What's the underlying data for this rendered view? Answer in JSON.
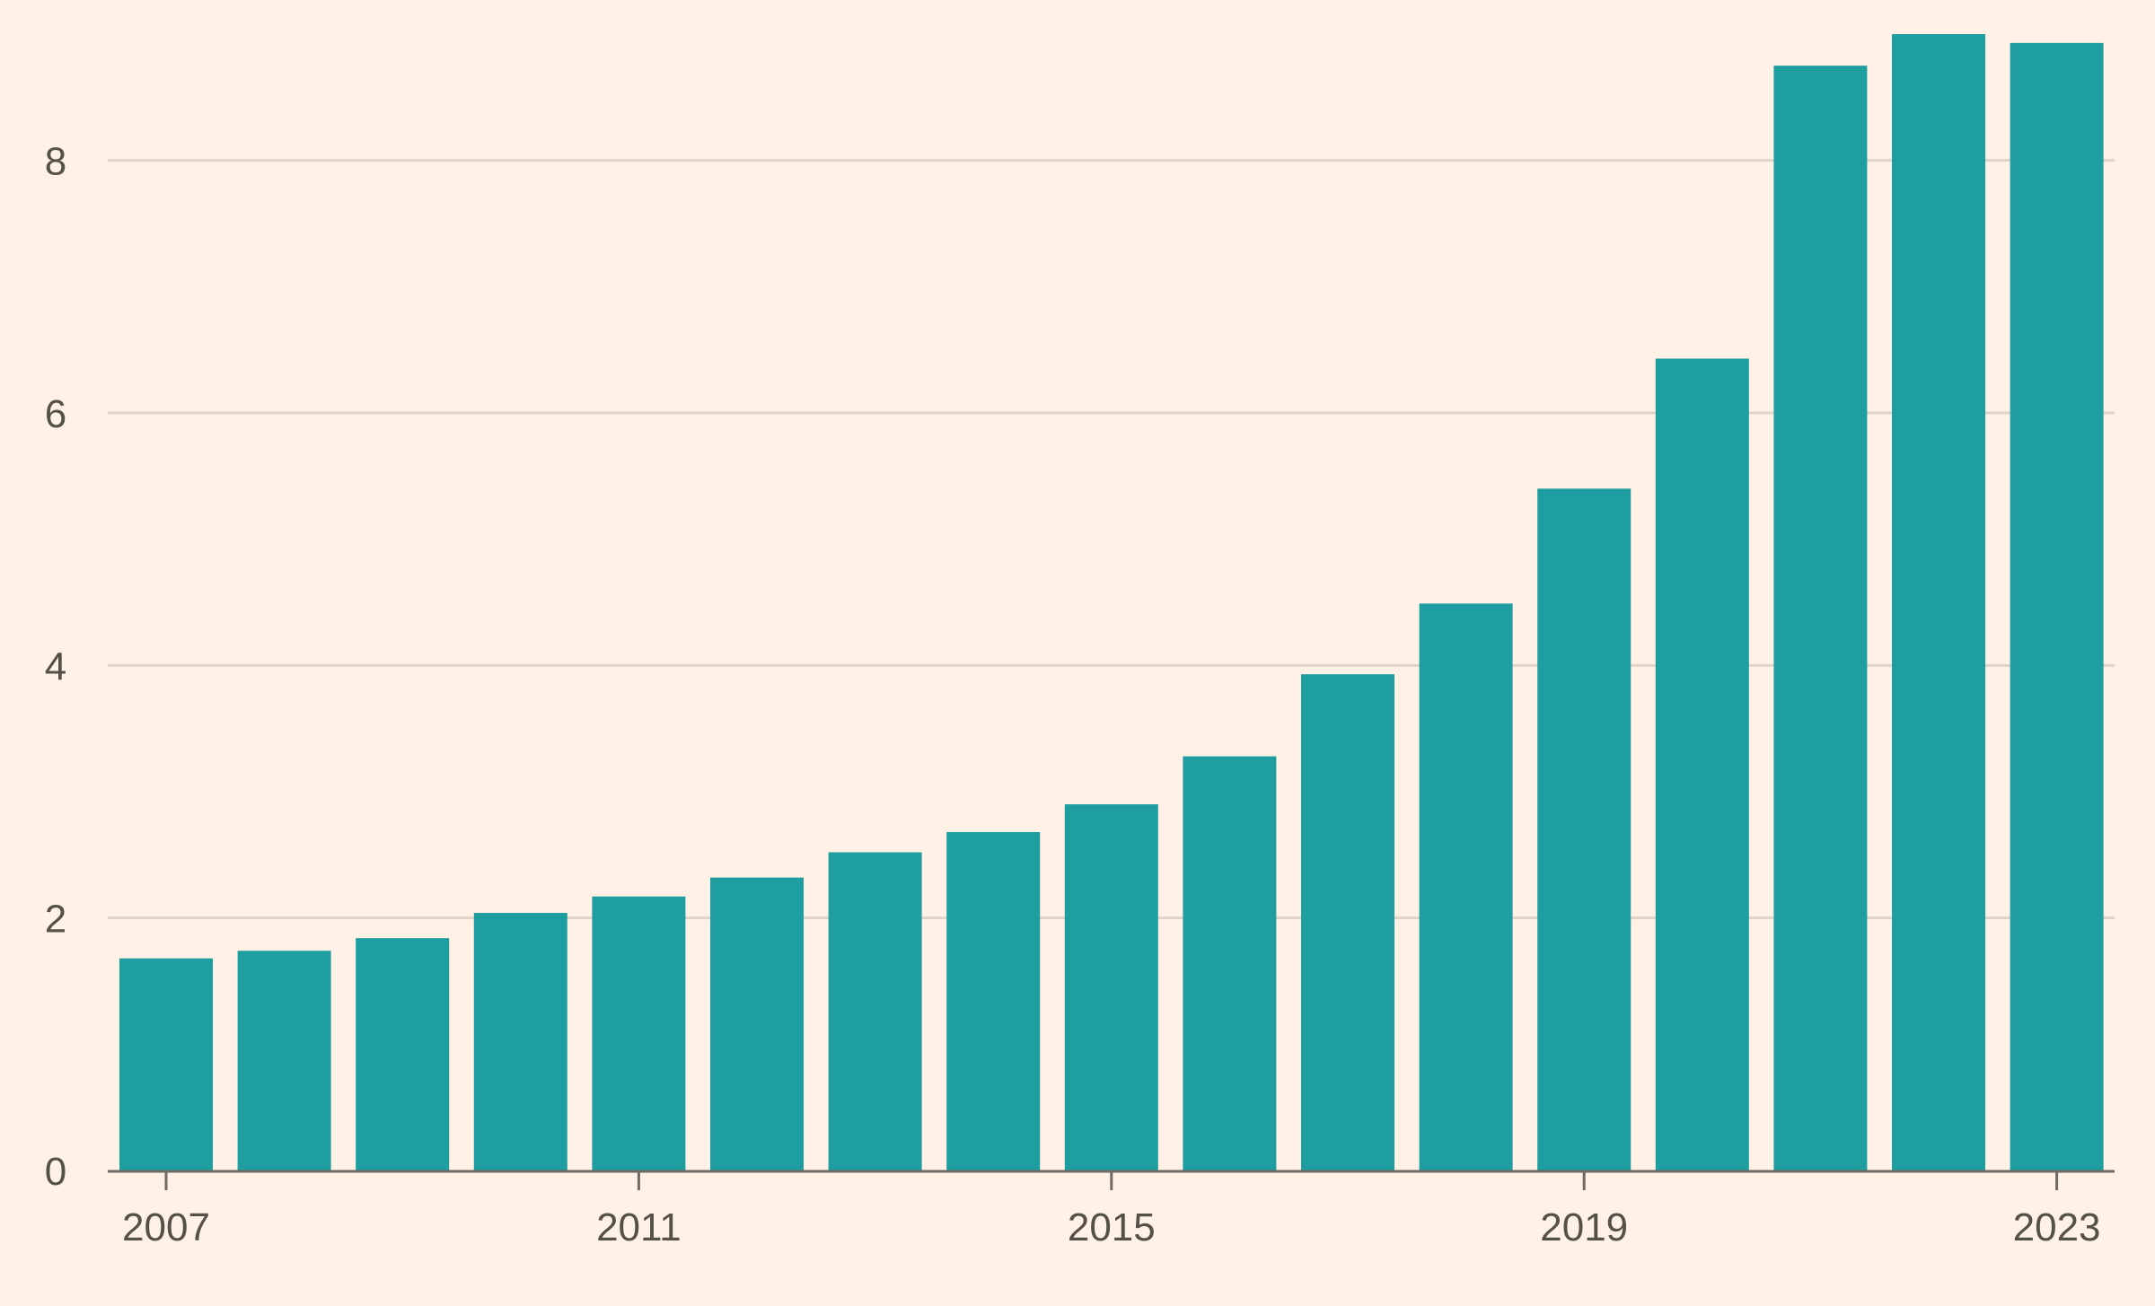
{
  "chart_data": {
    "type": "bar",
    "categories": [
      "2007",
      "2008",
      "2009",
      "2010",
      "2011",
      "2012",
      "2013",
      "2014",
      "2015",
      "2016",
      "2017",
      "2018",
      "2019",
      "2020",
      "2021",
      "2022",
      "2023"
    ],
    "values": [
      1.68,
      1.74,
      1.84,
      2.04,
      2.17,
      2.32,
      2.52,
      2.68,
      2.9,
      3.28,
      3.93,
      4.49,
      5.4,
      6.43,
      8.75,
      9.0,
      8.93
    ],
    "x_tick_labels": [
      "2007",
      "2011",
      "2015",
      "2019",
      "2023"
    ],
    "y_ticks": [
      0,
      2,
      4,
      6,
      8
    ],
    "ylim": [
      0,
      9
    ],
    "grid": true,
    "title": "",
    "xlabel": "",
    "ylabel": "",
    "colors": {
      "background": "#fff1e5",
      "bar": "#1f9ea1",
      "gridline": "#e0d3c8",
      "baseline": "#6f6a63",
      "tick_text": "#555048"
    }
  }
}
